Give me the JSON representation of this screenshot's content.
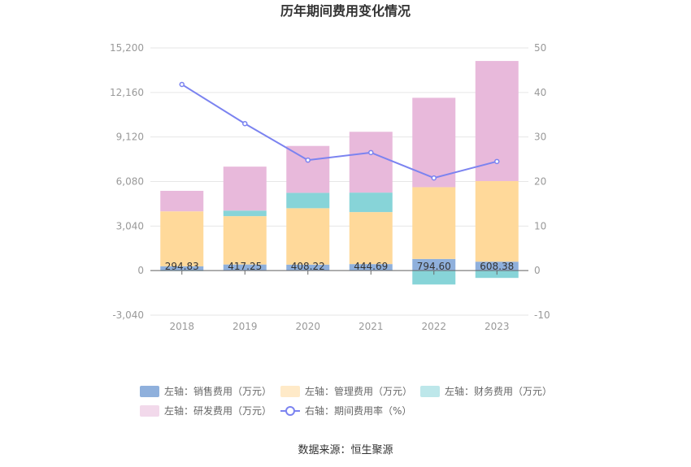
{
  "chart_data": {
    "type": "bar",
    "title": "历年期间费用变化情况",
    "categories": [
      "2018",
      "2019",
      "2020",
      "2021",
      "2022",
      "2023"
    ],
    "left_axis": {
      "ylim": [
        -3040,
        15200
      ],
      "ticks": [
        "15,200",
        "12,160",
        "9,120",
        "6,080",
        "3,040",
        "0",
        "-3,040"
      ]
    },
    "right_axis": {
      "ylim": [
        -10,
        50
      ],
      "ticks": [
        "50",
        "40",
        "30",
        "20",
        "10",
        "0",
        "-10"
      ]
    },
    "series": [
      {
        "name": "左轴：销售费用（万元）",
        "kind": "bar",
        "color": "#8fb0dc",
        "values": [
          294.83,
          417.25,
          408.22,
          444.69,
          794.6,
          608.38
        ],
        "labels": [
          "294.83",
          "417.25",
          "408.22",
          "444.69",
          "794.60",
          "608.38"
        ]
      },
      {
        "name": "左轴：管理费用（万元）",
        "kind": "bar",
        "color": "#ffd99a",
        "values": [
          3750,
          3300,
          3850,
          3550,
          4900,
          5500
        ]
      },
      {
        "name": "左轴：财务费用（万元）",
        "kind": "bar",
        "color": "#87d4d8",
        "values": [
          -30,
          380,
          1050,
          1330,
          -950,
          -500
        ]
      },
      {
        "name": "左轴：研发费用（万元）",
        "kind": "bar",
        "color": "#e8b9db",
        "values": [
          1400,
          3000,
          3200,
          4150,
          6100,
          8200
        ]
      },
      {
        "name": "右轴：期间费用率（%）",
        "kind": "line",
        "color": "#7b83f0",
        "values": [
          41.8,
          33.0,
          24.8,
          26.5,
          20.8,
          24.5
        ]
      }
    ],
    "legend_placement": "bottom",
    "grid": true,
    "source": "数据来源：恒生聚源"
  }
}
